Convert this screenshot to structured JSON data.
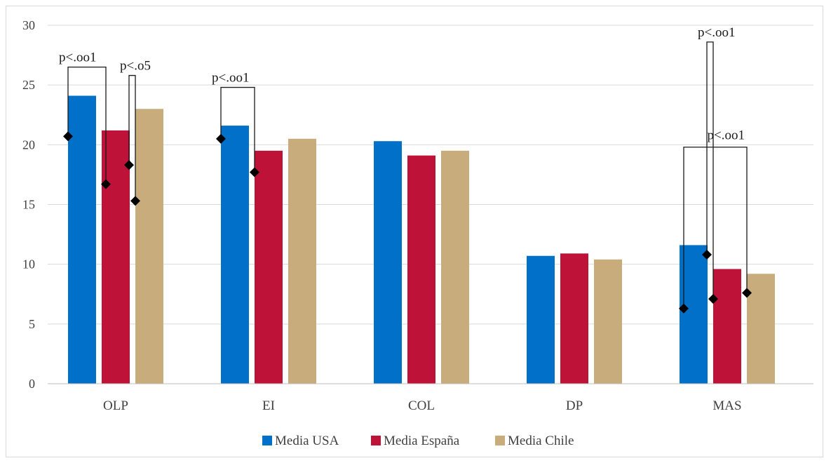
{
  "chart_data": {
    "type": "bar",
    "categories": [
      "OLP",
      "EI",
      "COL",
      "DP",
      "MAS"
    ],
    "ylim": [
      0,
      30
    ],
    "yticks": [
      0,
      5,
      10,
      15,
      20,
      25,
      30
    ],
    "grid": true,
    "legend_position": "bottom",
    "series": [
      {
        "name": "Media USA",
        "color": "#0070c9",
        "values": [
          24.1,
          21.6,
          20.3,
          10.7,
          11.6
        ]
      },
      {
        "name": "Media España",
        "color": "#be1238",
        "values": [
          21.2,
          19.5,
          19.1,
          10.9,
          9.6
        ]
      },
      {
        "name": "Media Chile",
        "color": "#c8ac7c",
        "values": [
          23.0,
          20.5,
          19.5,
          10.4,
          9.2
        ]
      }
    ],
    "markers": [
      {
        "category": "OLP",
        "series_index": 0,
        "y": 20.7
      },
      {
        "category": "OLP",
        "series_index": 1,
        "y": 16.7,
        "slot": "left-edge"
      },
      {
        "category": "OLP",
        "series_index": 1,
        "y": 18.3,
        "slot": "right-edge"
      },
      {
        "category": "OLP",
        "series_index": 2,
        "y": 15.3
      },
      {
        "category": "EI",
        "series_index": 0,
        "y": 20.5
      },
      {
        "category": "EI",
        "series_index": 1,
        "y": 17.7
      },
      {
        "category": "MAS",
        "series_index": 0,
        "y": 6.3,
        "slot": "left-edge"
      },
      {
        "category": "MAS",
        "series_index": 0,
        "y": 10.8,
        "slot": "right-edge"
      },
      {
        "category": "MAS",
        "series_index": 1,
        "y": 7.1
      },
      {
        "category": "MAS",
        "series_index": 2,
        "y": 7.6
      }
    ],
    "annotations": [
      {
        "label": "p<.oo1",
        "category": "OLP",
        "from_marker": 0,
        "to_marker": 1,
        "y": 26.5
      },
      {
        "label": "p<.o5",
        "category": "OLP",
        "from_marker": 2,
        "to_marker": 3,
        "y": 25.8
      },
      {
        "label": "p<.oo1",
        "category": "EI",
        "from_marker": 4,
        "to_marker": 5,
        "y": 24.8
      },
      {
        "label": "p<.oo1",
        "category": "MAS",
        "from_marker": 7,
        "to_marker": 8,
        "y": 28.6
      },
      {
        "label": "p<.oo1",
        "category": "MAS",
        "from_marker": 6,
        "to_marker": 9,
        "y": 19.8
      }
    ]
  }
}
